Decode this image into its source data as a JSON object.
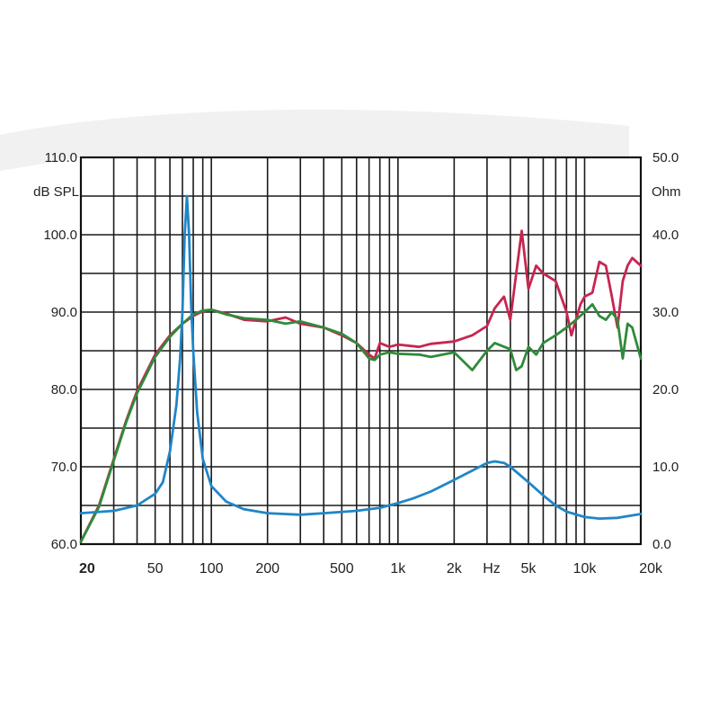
{
  "chart_data": {
    "type": "line",
    "x_scale": "log",
    "xlim": [
      20,
      20000
    ],
    "x_ticks": [
      {
        "value": 20,
        "label": "20"
      },
      {
        "value": 50,
        "label": "50"
      },
      {
        "value": 100,
        "label": "100"
      },
      {
        "value": 200,
        "label": "200"
      },
      {
        "value": 500,
        "label": "500"
      },
      {
        "value": 1000,
        "label": "1k"
      },
      {
        "value": 2000,
        "label": "2k"
      },
      {
        "value": 5000,
        "label": "5k"
      },
      {
        "value": 10000,
        "label": "10k"
      },
      {
        "value": 20000,
        "label": "20k"
      }
    ],
    "xlabel": "Hz",
    "ylabel_left": "dB SPL",
    "ylim_left": [
      60,
      110
    ],
    "y_ticks_left": [
      "60.0",
      "70.0",
      "80.0",
      "90.0",
      "100.0",
      "110.0"
    ],
    "ylabel_right": "Ohm",
    "ylim_right": [
      0,
      50
    ],
    "y_ticks_right": [
      "0.0",
      "10.0",
      "20.0",
      "30.0",
      "40.0",
      "50.0"
    ],
    "grid": true,
    "series": [
      {
        "axis": "left",
        "color": "#c8254f",
        "points": [
          [
            20,
            60.3
          ],
          [
            25,
            65
          ],
          [
            30,
            71
          ],
          [
            35,
            76
          ],
          [
            40,
            79.8
          ],
          [
            50,
            84.5
          ],
          [
            60,
            87
          ],
          [
            70,
            88.5
          ],
          [
            80,
            89.5
          ],
          [
            90,
            90.1
          ],
          [
            100,
            90.3
          ],
          [
            120,
            89.8
          ],
          [
            150,
            89
          ],
          [
            200,
            88.8
          ],
          [
            250,
            89.3
          ],
          [
            300,
            88.5
          ],
          [
            400,
            88
          ],
          [
            500,
            87
          ],
          [
            600,
            86
          ],
          [
            700,
            84.5
          ],
          [
            750,
            84
          ],
          [
            800,
            86
          ],
          [
            900,
            85.5
          ],
          [
            1000,
            85.8
          ],
          [
            1300,
            85.5
          ],
          [
            1500,
            85.9
          ],
          [
            2000,
            86.2
          ],
          [
            2500,
            87
          ],
          [
            3000,
            88.2
          ],
          [
            3300,
            90.5
          ],
          [
            3700,
            92
          ],
          [
            4000,
            89
          ],
          [
            4300,
            95
          ],
          [
            4600,
            100.5
          ],
          [
            5000,
            93
          ],
          [
            5500,
            96
          ],
          [
            6000,
            95
          ],
          [
            7000,
            94
          ],
          [
            8000,
            90
          ],
          [
            8500,
            87
          ],
          [
            9500,
            91
          ],
          [
            10000,
            92
          ],
          [
            11000,
            92.5
          ],
          [
            12000,
            96.5
          ],
          [
            13000,
            96
          ],
          [
            14000,
            92
          ],
          [
            15000,
            88
          ],
          [
            16000,
            94
          ],
          [
            17000,
            96
          ],
          [
            18000,
            97
          ],
          [
            20000,
            96
          ]
        ]
      },
      {
        "axis": "left",
        "color": "#2e8b3a",
        "points": [
          [
            20,
            60.3
          ],
          [
            25,
            64.8
          ],
          [
            30,
            70.8
          ],
          [
            35,
            75.8
          ],
          [
            40,
            79.5
          ],
          [
            50,
            84.2
          ],
          [
            60,
            86.8
          ],
          [
            70,
            88.5
          ],
          [
            80,
            89.7
          ],
          [
            90,
            90.2
          ],
          [
            100,
            90.3
          ],
          [
            120,
            89.7
          ],
          [
            150,
            89.2
          ],
          [
            200,
            89
          ],
          [
            250,
            88.5
          ],
          [
            300,
            88.8
          ],
          [
            400,
            88
          ],
          [
            500,
            87.2
          ],
          [
            600,
            86
          ],
          [
            700,
            84
          ],
          [
            750,
            83.8
          ],
          [
            800,
            84.5
          ],
          [
            900,
            84.8
          ],
          [
            1000,
            84.6
          ],
          [
            1300,
            84.5
          ],
          [
            1500,
            84.2
          ],
          [
            2000,
            84.8
          ],
          [
            2500,
            82.5
          ],
          [
            3000,
            85
          ],
          [
            3300,
            86
          ],
          [
            4000,
            85.2
          ],
          [
            4300,
            82.5
          ],
          [
            4600,
            83
          ],
          [
            5000,
            85.5
          ],
          [
            5500,
            84.5
          ],
          [
            6000,
            86
          ],
          [
            7000,
            87
          ],
          [
            8000,
            88
          ],
          [
            9000,
            89
          ],
          [
            10000,
            90
          ],
          [
            11000,
            91
          ],
          [
            12000,
            89.5
          ],
          [
            13000,
            89
          ],
          [
            14000,
            90
          ],
          [
            15000,
            89
          ],
          [
            16000,
            84
          ],
          [
            17000,
            88.5
          ],
          [
            18000,
            88
          ],
          [
            20000,
            84
          ]
        ]
      },
      {
        "axis": "right",
        "color": "#1f86c8",
        "points": [
          [
            20,
            4.0
          ],
          [
            30,
            4.3
          ],
          [
            40,
            5.0
          ],
          [
            50,
            6.5
          ],
          [
            55,
            8.0
          ],
          [
            60,
            12
          ],
          [
            65,
            18
          ],
          [
            68,
            24
          ],
          [
            70,
            30
          ],
          [
            72,
            40
          ],
          [
            74,
            45
          ],
          [
            76,
            40
          ],
          [
            78,
            31
          ],
          [
            80,
            25
          ],
          [
            84,
            17
          ],
          [
            90,
            11
          ],
          [
            100,
            7.5
          ],
          [
            120,
            5.5
          ],
          [
            150,
            4.5
          ],
          [
            200,
            4.0
          ],
          [
            300,
            3.8
          ],
          [
            400,
            4.0
          ],
          [
            600,
            4.3
          ],
          [
            800,
            4.7
          ],
          [
            1000,
            5.3
          ],
          [
            1200,
            5.9
          ],
          [
            1500,
            6.8
          ],
          [
            2000,
            8.3
          ],
          [
            2500,
            9.5
          ],
          [
            3000,
            10.5
          ],
          [
            3300,
            10.7
          ],
          [
            3700,
            10.5
          ],
          [
            4000,
            10
          ],
          [
            5000,
            8
          ],
          [
            6000,
            6.3
          ],
          [
            7000,
            5.0
          ],
          [
            8000,
            4.2
          ],
          [
            10000,
            3.5
          ],
          [
            12000,
            3.3
          ],
          [
            15000,
            3.4
          ],
          [
            20000,
            3.9
          ]
        ]
      }
    ]
  }
}
